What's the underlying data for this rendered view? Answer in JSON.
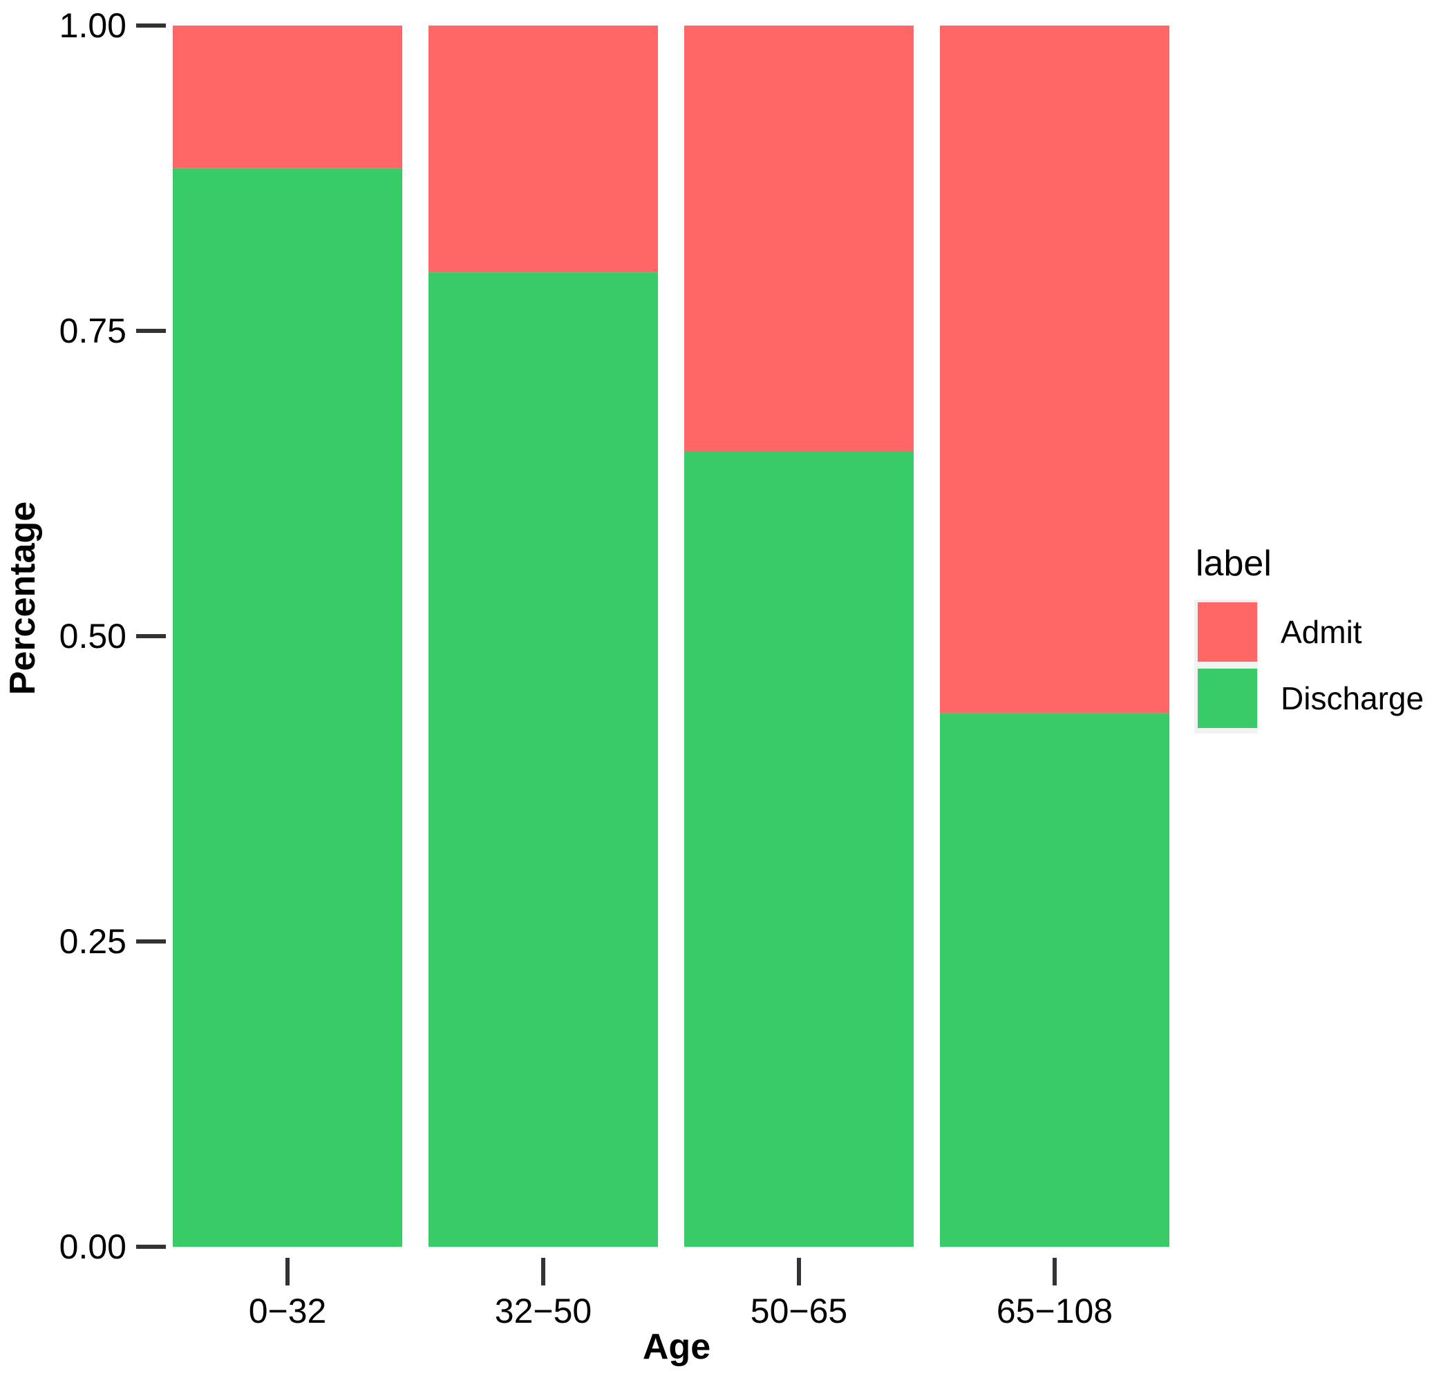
{
  "chart_data": {
    "type": "bar",
    "stacked": true,
    "categories": [
      "0−32",
      "32−50",
      "50−65",
      "65−108"
    ],
    "series": [
      {
        "name": "Discharge",
        "color": "#38CB68",
        "values": [
          0.883,
          0.798,
          0.651,
          0.437
        ]
      },
      {
        "name": "Admit",
        "color": "#FF6666",
        "values": [
          0.117,
          0.202,
          0.349,
          0.563
        ]
      }
    ],
    "xlabel": "Age",
    "ylabel": "Percentage",
    "ylim": [
      0,
      1
    ],
    "yticks": [
      "0.00",
      "0.25",
      "0.50",
      "0.75",
      "1.00"
    ],
    "legend": {
      "title": "label",
      "entries": [
        "Admit",
        "Discharge"
      ],
      "placement": "right"
    },
    "grid": false
  }
}
